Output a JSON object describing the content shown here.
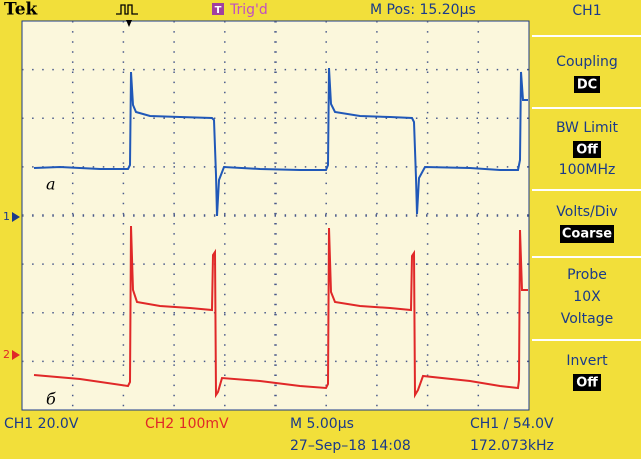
{
  "header": {
    "brand": "Tek",
    "trigger_status": "Trig'd",
    "position": "M Pos: 15.20µs"
  },
  "sidebar": {
    "title": "CH1",
    "menus": [
      {
        "label": "Coupling",
        "value": "DC"
      },
      {
        "label": "BW Limit",
        "value": "Off",
        "extra": "100MHz"
      },
      {
        "label": "Volts/Div",
        "value": "Coarse"
      },
      {
        "label": "Probe",
        "lines": [
          "10X",
          "Voltage"
        ]
      },
      {
        "label": "Invert",
        "value": "Off"
      }
    ]
  },
  "traces": {
    "ch1_marker": "1",
    "ch2_marker": "2",
    "ch1_label": "a",
    "ch2_label": "б"
  },
  "footer": {
    "ch1_scale": "CH1  20.0V",
    "ch2_scale": "CH2  100mV",
    "timebase": "M 5.00µs",
    "trigger": "CH1 ∕ 54.0V",
    "datetime": "27–Sep–18 14:08",
    "frequency": "172.073kHz"
  }
}
